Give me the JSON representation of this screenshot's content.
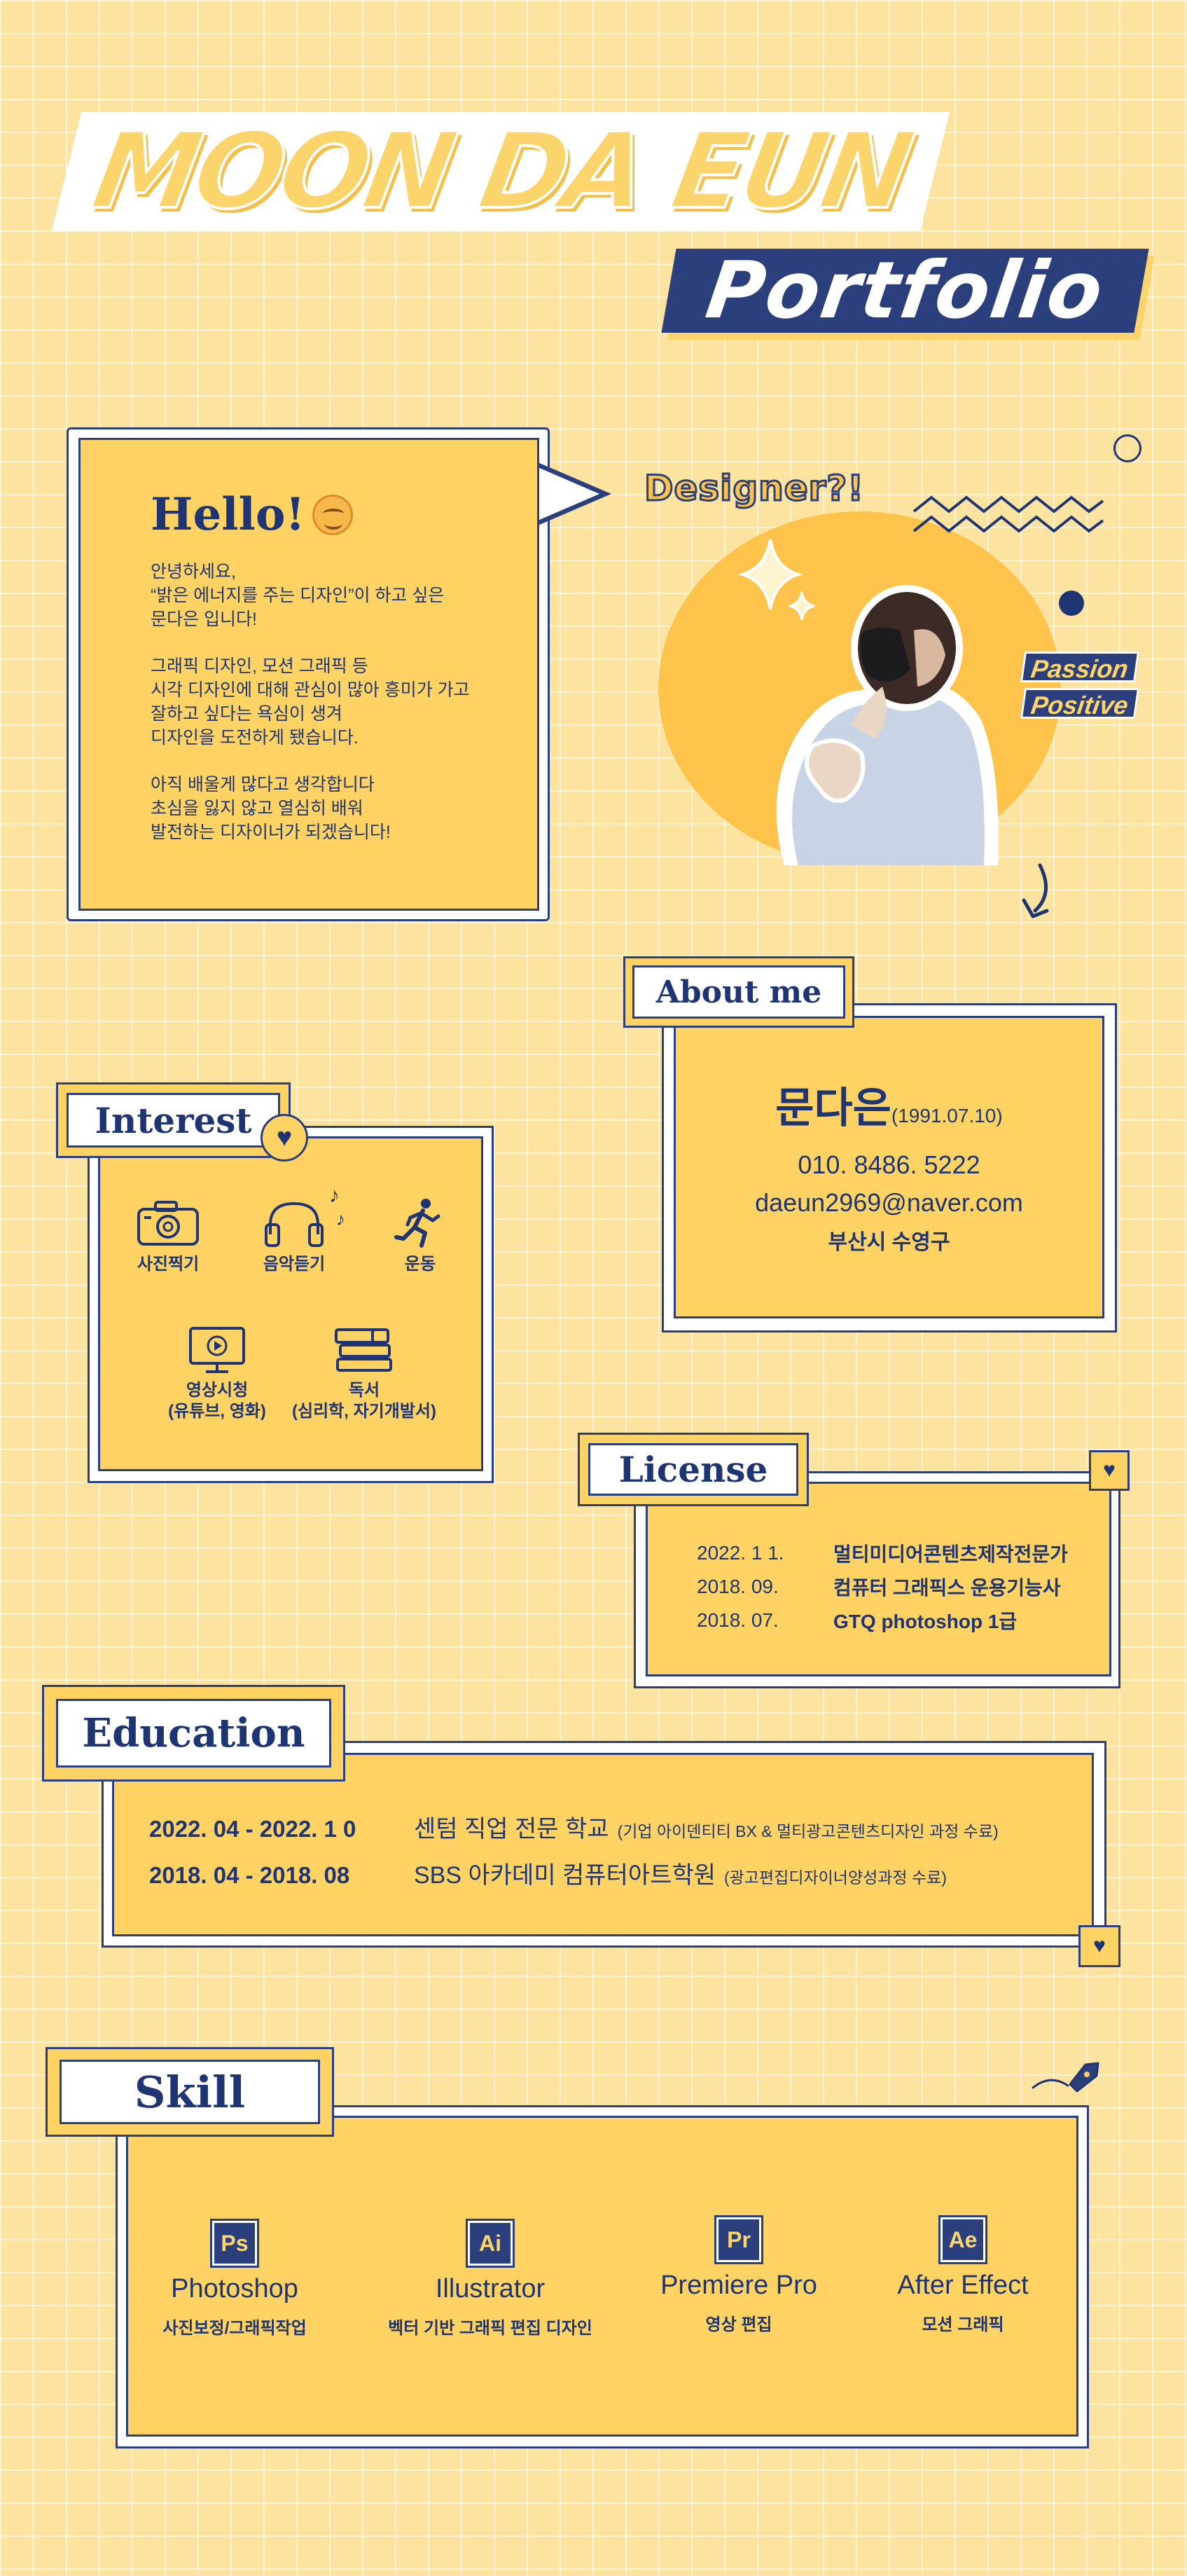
{
  "header": {
    "name": "MOON DA EUN",
    "subtitle": "Portfolio"
  },
  "hello": {
    "title": "Hello!",
    "paragraphs": [
      [
        "안녕하세요,",
        "“밝은 에너지를 주는 디자인”이 하고 싶은",
        "문다은 입니다!"
      ],
      [
        "그래픽 디자인,  모션 그래픽 등",
        "시각 디자인에 대해 관심이 많아 흥미가 가고",
        "잘하고 싶다는 욕심이 생겨",
        "디자인을 도전하게 됐습니다."
      ],
      [
        "아직 배울게 많다고 생각합니다",
        "초심을 잃지 않고 열심히 배워",
        "발전하는 디자이너가 되겠습니다!"
      ]
    ]
  },
  "designer": {
    "title": "Designer?!",
    "tags": [
      "Passion",
      "Positive"
    ]
  },
  "about": {
    "heading": "About me",
    "name": "문다은",
    "birth": "(1991.07.10)",
    "phone": "010. 8486. 5222",
    "email": "daeun2969@naver.com",
    "location": "부산시 수영구"
  },
  "interest": {
    "heading": "Interest",
    "items": [
      {
        "icon": "camera-icon",
        "label": "사진찍기",
        "label2": ""
      },
      {
        "icon": "headphones-icon",
        "label": "음악듣기",
        "label2": ""
      },
      {
        "icon": "runner-icon",
        "label": "운동",
        "label2": ""
      },
      {
        "icon": "monitor-play-icon",
        "label": "영상시청",
        "label2": "(유튜브, 영화)"
      },
      {
        "icon": "books-icon",
        "label": "독서",
        "label2": "(심리학, 자기개발서)"
      }
    ]
  },
  "license": {
    "heading": "License",
    "rows": [
      {
        "date": "2022. 1 1.",
        "name": "멀티미디어콘텐츠제작전문가"
      },
      {
        "date": "2018. 09.",
        "name": "컴퓨터 그래픽스 운용기능사"
      },
      {
        "date": "2018. 07.",
        "name": "GTQ photoshop 1급"
      }
    ]
  },
  "education": {
    "heading": "Education",
    "rows": [
      {
        "date": "2022. 04  -  2022. 1 0",
        "school": "센텀 직업 전문 학교",
        "note": "(기업 아이덴티티 BX & 멀티광고콘텐츠디자인 과정 수료)"
      },
      {
        "date": "2018. 04  -  2018. 08",
        "school": "SBS 아카데미 컴퓨터아트학원",
        "note": "(광고편집디자이너양성과정 수료)"
      }
    ]
  },
  "skill": {
    "heading": "Skill",
    "items": [
      {
        "badge": "Ps",
        "name": "Photoshop",
        "desc": "사진보정/그래픽작업"
      },
      {
        "badge": "Ai",
        "name": "Illustrator",
        "desc": "벡터 기반 그래픽 편집 디자인"
      },
      {
        "badge": "Pr",
        "name": "Premiere Pro",
        "desc": "영상 편집"
      },
      {
        "badge": "Ae",
        "name": "After Effect",
        "desc": "모션 그래픽"
      }
    ]
  },
  "colors": {
    "navy": "#2b3f7c",
    "yellow": "#fed363",
    "background": "#fde3a0",
    "white": "#ffffff"
  }
}
